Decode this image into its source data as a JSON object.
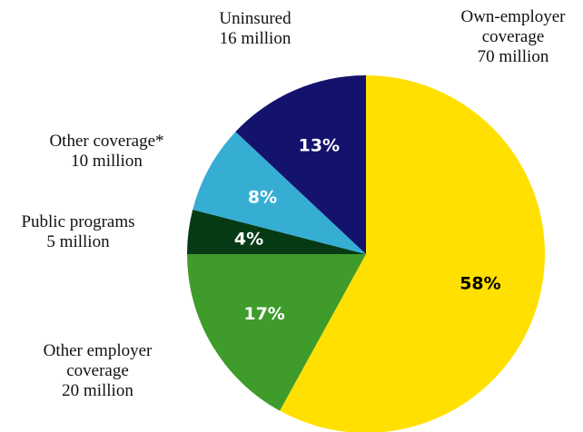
{
  "chart_data": {
    "type": "pie",
    "slices": [
      {
        "label": "Own-employer coverage",
        "amount": "70 million",
        "value": 58,
        "value_label": "58%",
        "color": "#ffe000",
        "value_text_color": "#000000"
      },
      {
        "label": "Other employer coverage",
        "amount": "20 million",
        "value": 17,
        "value_label": "17%",
        "color": "#3f9b2a",
        "value_text_color": "#ffffff"
      },
      {
        "label": "Public programs",
        "amount": "5 million",
        "value": 4,
        "value_label": "4%",
        "color": "#053a15",
        "value_text_color": "#ffffff"
      },
      {
        "label": "Other coverage*",
        "amount": "10 million",
        "value": 8,
        "value_label": "8%",
        "color": "#36aed4",
        "value_text_color": "#ffffff"
      },
      {
        "label": "Uninsured",
        "amount": "16 million",
        "value": 13,
        "value_label": "13%",
        "color": "#13136e",
        "value_text_color": "#ffffff"
      }
    ]
  }
}
